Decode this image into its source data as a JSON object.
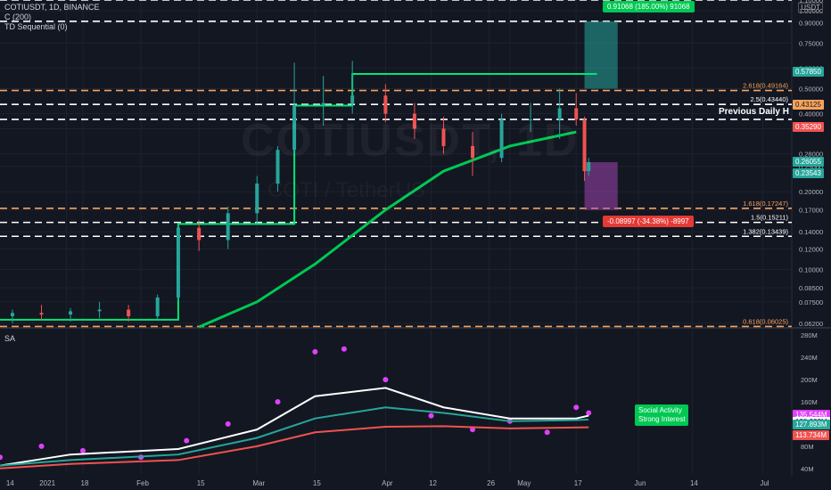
{
  "header": {
    "symbol_line": "COTIUSDT, 1D, BINANCE",
    "indicator1": "C (200)",
    "indicator2": "TD Sequential (0)",
    "subpane_title": "SA",
    "currency": "USDT",
    "watermark_symbol": "COTIUSDT, 1D",
    "watermark_pair": "COTI / TetherUS"
  },
  "price_scale": {
    "ticks": [
      "1.10000",
      "1.00000",
      "0.90000",
      "0.75000",
      "0.60000",
      "0.50000",
      "0.40000",
      "0.35000",
      "0.28000",
      "0.25000",
      "0.20000",
      "0.17000",
      "0.14000",
      "0.12000",
      "0.10000",
      "0.08500",
      "0.07500",
      "0.06200"
    ],
    "tags": [
      {
        "text": "0.57850",
        "bg": "#26a69a",
        "fg": "#ffffff"
      },
      {
        "text": "0.43125",
        "bg": "#f7a35c",
        "fg": "#131722"
      },
      {
        "text": "0.35290",
        "bg": "#ef5350",
        "fg": "#ffffff"
      },
      {
        "text": "0.26055",
        "bg": "#26a69a",
        "fg": "#ffffff"
      },
      {
        "text": "0.23543",
        "bg": "#26a69a",
        "fg": "#ffffff"
      }
    ]
  },
  "fib_levels": [
    {
      "label": "2.618(0.49164)",
      "color": "#f7a35c"
    },
    {
      "label": "2.5(0.43440)",
      "color": "#ffffff"
    },
    {
      "label": "1.618(0.17247)",
      "color": "#f7a35c"
    },
    {
      "label": "1.5(0.15211)",
      "color": "#ffffff"
    },
    {
      "label": "1.382(0.13439)",
      "color": "#ffffff"
    },
    {
      "label": "0.618(0.06025)",
      "color": "#f7a35c"
    }
  ],
  "annotations": {
    "previous_daily": "Previous Daily H",
    "long_box": "0.91068 (185.00%) 91068",
    "short_box": "-0.08997 (-34.38%) -8997"
  },
  "sub_scale": {
    "ticks": [
      "280M",
      "240M",
      "200M",
      "160M",
      "80M",
      "40M"
    ],
    "tags": [
      {
        "text": "135.544M",
        "bg": "#e040fb",
        "fg": "#ffffff"
      },
      {
        "text": "128.223M",
        "bg": "#ffffff",
        "fg": "#131722"
      },
      {
        "text": "127.893M",
        "bg": "#26a69a",
        "fg": "#ffffff"
      },
      {
        "text": "113.734M",
        "bg": "#ef5350",
        "fg": "#ffffff"
      }
    ],
    "legend": [
      "Social Activity",
      "Strong Interest"
    ]
  },
  "time_axis": {
    "labels": [
      "14",
      "2021",
      "18",
      "Feb",
      "15",
      "Mar",
      "15",
      "Apr",
      "12",
      "26",
      "May",
      "17",
      "Jun",
      "14",
      "Jul"
    ]
  },
  "chart_data": {
    "type": "candlestick",
    "title": "COTIUSDT, 1D, BINANCE",
    "xlabel": "",
    "ylabel": "",
    "y_scale": "log",
    "ylim": [
      0.06,
      1.1
    ],
    "x_range": [
      "2020-12-29",
      "2021-07-08"
    ],
    "ohlc_series": [
      {
        "date": "2021-01-01",
        "o": 0.066,
        "h": 0.07,
        "l": 0.062,
        "c": 0.068
      },
      {
        "date": "2021-01-08",
        "o": 0.068,
        "h": 0.073,
        "l": 0.064,
        "c": 0.067
      },
      {
        "date": "2021-01-15",
        "o": 0.067,
        "h": 0.071,
        "l": 0.063,
        "c": 0.069
      },
      {
        "date": "2021-01-22",
        "o": 0.069,
        "h": 0.075,
        "l": 0.065,
        "c": 0.07
      },
      {
        "date": "2021-01-29",
        "o": 0.07,
        "h": 0.073,
        "l": 0.063,
        "c": 0.066
      },
      {
        "date": "2021-02-05",
        "o": 0.066,
        "h": 0.08,
        "l": 0.064,
        "c": 0.078
      },
      {
        "date": "2021-02-10",
        "o": 0.078,
        "h": 0.15,
        "l": 0.076,
        "c": 0.145
      },
      {
        "date": "2021-02-15",
        "o": 0.145,
        "h": 0.155,
        "l": 0.118,
        "c": 0.13
      },
      {
        "date": "2021-02-22",
        "o": 0.13,
        "h": 0.175,
        "l": 0.12,
        "c": 0.165
      },
      {
        "date": "2021-03-01",
        "o": 0.165,
        "h": 0.23,
        "l": 0.15,
        "c": 0.215
      },
      {
        "date": "2021-03-06",
        "o": 0.215,
        "h": 0.3,
        "l": 0.2,
        "c": 0.29
      },
      {
        "date": "2021-03-10",
        "o": 0.29,
        "h": 0.63,
        "l": 0.28,
        "c": 0.43
      },
      {
        "date": "2021-03-17",
        "o": 0.43,
        "h": 0.56,
        "l": 0.36,
        "c": 0.44
      },
      {
        "date": "2021-03-24",
        "o": 0.44,
        "h": 0.64,
        "l": 0.4,
        "c": 0.47
      },
      {
        "date": "2021-04-01",
        "o": 0.47,
        "h": 0.52,
        "l": 0.37,
        "c": 0.4
      },
      {
        "date": "2021-04-08",
        "o": 0.4,
        "h": 0.44,
        "l": 0.32,
        "c": 0.35
      },
      {
        "date": "2021-04-15",
        "o": 0.35,
        "h": 0.39,
        "l": 0.28,
        "c": 0.3
      },
      {
        "date": "2021-04-22",
        "o": 0.3,
        "h": 0.34,
        "l": 0.23,
        "c": 0.27
      },
      {
        "date": "2021-04-29",
        "o": 0.27,
        "h": 0.4,
        "l": 0.26,
        "c": 0.38
      },
      {
        "date": "2021-05-06",
        "o": 0.38,
        "h": 0.44,
        "l": 0.34,
        "c": 0.38
      },
      {
        "date": "2021-05-13",
        "o": 0.38,
        "h": 0.5,
        "l": 0.32,
        "c": 0.42
      },
      {
        "date": "2021-05-17",
        "o": 0.42,
        "h": 0.48,
        "l": 0.36,
        "c": 0.38
      },
      {
        "date": "2021-05-19",
        "o": 0.38,
        "h": 0.39,
        "l": 0.22,
        "c": 0.24
      },
      {
        "date": "2021-05-20",
        "o": 0.24,
        "h": 0.27,
        "l": 0.23,
        "c": 0.26
      }
    ],
    "ma200": [
      {
        "date": "2021-02-15",
        "v": 0.06
      },
      {
        "date": "2021-03-01",
        "v": 0.075
      },
      {
        "date": "2021-03-15",
        "v": 0.105
      },
      {
        "date": "2021-04-01",
        "v": 0.17
      },
      {
        "date": "2021-04-15",
        "v": 0.24
      },
      {
        "date": "2021-05-01",
        "v": 0.3
      },
      {
        "date": "2021-05-17",
        "v": 0.34
      }
    ],
    "step_line": [
      {
        "date": "2020-12-29",
        "v": 0.064
      },
      {
        "date": "2021-02-10",
        "v": 0.064
      },
      {
        "date": "2021-02-10",
        "v": 0.15
      },
      {
        "date": "2021-03-10",
        "v": 0.15
      },
      {
        "date": "2021-03-10",
        "v": 0.43
      },
      {
        "date": "2021-03-24",
        "v": 0.43
      },
      {
        "date": "2021-03-24",
        "v": 0.57
      },
      {
        "date": "2021-05-22",
        "v": 0.57
      }
    ],
    "dashed_levels": [
      1.1,
      0.91,
      0.49164,
      0.4344,
      0.38,
      0.17247,
      0.15211,
      0.13439,
      0.06025
    ],
    "sub_series": [
      {
        "name": "Social Activity",
        "color": "#e040fb",
        "type": "dots",
        "values": [
          [
            "2020-12-29",
            60
          ],
          [
            "2021-01-08",
            80
          ],
          [
            "2021-01-18",
            72
          ],
          [
            "2021-02-01",
            60
          ],
          [
            "2021-02-12",
            90
          ],
          [
            "2021-02-22",
            120
          ],
          [
            "2021-03-06",
            160
          ],
          [
            "2021-03-15",
            250
          ],
          [
            "2021-03-22",
            255
          ],
          [
            "2021-04-01",
            200
          ],
          [
            "2021-04-12",
            135
          ],
          [
            "2021-04-22",
            110
          ],
          [
            "2021-05-01",
            125
          ],
          [
            "2021-05-10",
            105
          ],
          [
            "2021-05-17",
            150
          ],
          [
            "2021-05-20",
            140
          ]
        ]
      },
      {
        "name": "",
        "color": "#ffffff",
        "type": "line",
        "values": [
          [
            "2020-12-29",
            45
          ],
          [
            "2021-01-15",
            65
          ],
          [
            "2021-02-10",
            75
          ],
          [
            "2021-03-01",
            110
          ],
          [
            "2021-03-15",
            170
          ],
          [
            "2021-04-01",
            185
          ],
          [
            "2021-04-15",
            150
          ],
          [
            "2021-05-01",
            130
          ],
          [
            "2021-05-17",
            130
          ],
          [
            "2021-05-20",
            135
          ]
        ]
      },
      {
        "name": "Strong Interest",
        "color": "#26a69a",
        "type": "line",
        "values": [
          [
            "2020-12-29",
            45
          ],
          [
            "2021-01-15",
            55
          ],
          [
            "2021-02-10",
            65
          ],
          [
            "2021-03-01",
            95
          ],
          [
            "2021-03-15",
            130
          ],
          [
            "2021-04-01",
            150
          ],
          [
            "2021-04-15",
            140
          ],
          [
            "2021-05-01",
            125
          ],
          [
            "2021-05-17",
            127
          ],
          [
            "2021-05-20",
            128
          ]
        ]
      },
      {
        "name": "",
        "color": "#ef5350",
        "type": "line",
        "values": [
          [
            "2020-12-29",
            40
          ],
          [
            "2021-01-15",
            48
          ],
          [
            "2021-02-10",
            55
          ],
          [
            "2021-03-01",
            80
          ],
          [
            "2021-03-15",
            105
          ],
          [
            "2021-04-01",
            115
          ],
          [
            "2021-04-15",
            116
          ],
          [
            "2021-05-01",
            112
          ],
          [
            "2021-05-20",
            114
          ]
        ]
      }
    ],
    "sub_ylim": [
      30,
      290
    ]
  }
}
